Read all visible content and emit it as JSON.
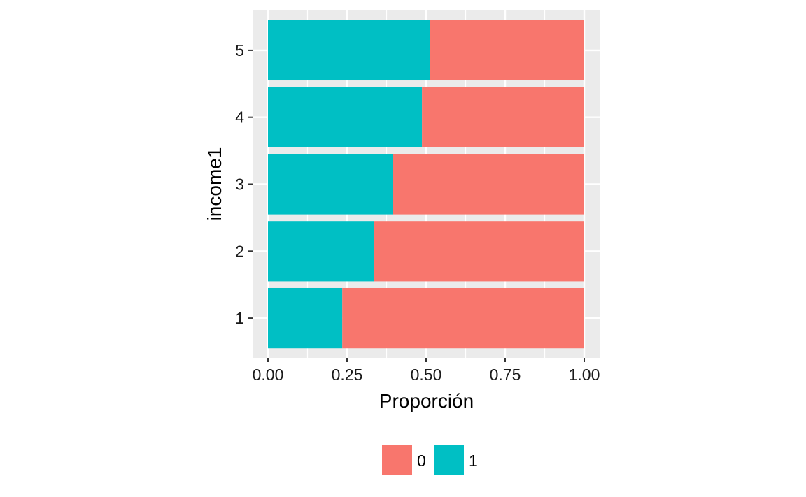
{
  "chart_data": {
    "type": "bar",
    "orientation": "horizontal",
    "stacked": true,
    "xlabel": "Proporción",
    "ylabel": "income1",
    "xlim": [
      0,
      1
    ],
    "x_ticks": [
      "0.00",
      "0.25",
      "0.50",
      "0.75",
      "1.00"
    ],
    "categories": [
      "1",
      "2",
      "3",
      "4",
      "5"
    ],
    "series": [
      {
        "name": "1",
        "color": "#00BFC4",
        "values": [
          0.235,
          0.335,
          0.395,
          0.487,
          0.513
        ]
      },
      {
        "name": "0",
        "color": "#F8766D",
        "values": [
          0.765,
          0.665,
          0.605,
          0.513,
          0.487
        ]
      }
    ],
    "legend": {
      "position": "bottom",
      "entries": [
        {
          "label": "0",
          "color": "#F8766D"
        },
        {
          "label": "1",
          "color": "#00BFC4"
        }
      ]
    },
    "grid": true,
    "panel_background": "#EBEBEB"
  }
}
